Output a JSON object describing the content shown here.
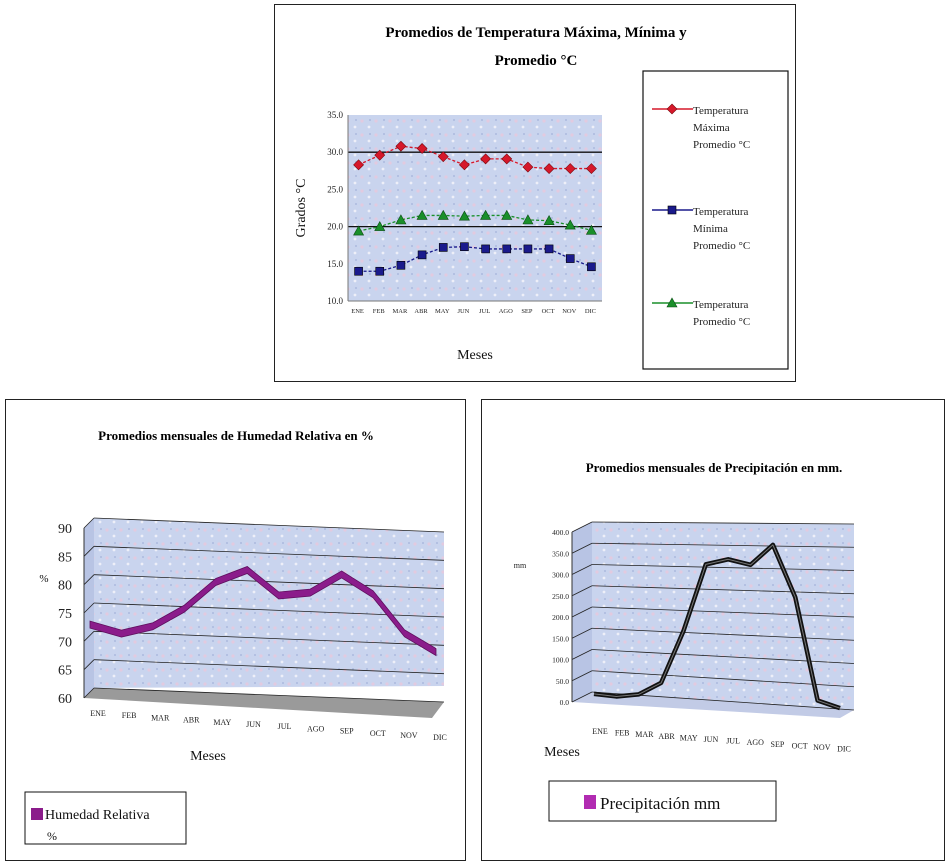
{
  "colors": {
    "tmax": "#d6182a",
    "tmin": "#1a1a8c",
    "tprom": "#1a8f2a",
    "humedad": "#8b1c8b",
    "precip": "#111111",
    "plot_bg": "#c9d4ee"
  },
  "chart_data": [
    {
      "type": "line",
      "title_line1": "Promedios de Temperatura Máxima, Mínima y",
      "title_line2": "Promedio °C",
      "xlabel": "Meses",
      "ylabel": "Grados °C",
      "ylim": [
        10,
        35
      ],
      "yticks": [
        "35.0",
        "30.0",
        "25.0",
        "20.0",
        "15.0",
        "10.0"
      ],
      "categories": [
        "ENE",
        "FEB",
        "MAR",
        "ABR",
        "MAY",
        "JUN",
        "JUL",
        "AGO",
        "SEP",
        "OCT",
        "NOV",
        "DIC"
      ],
      "grid": "horizontal",
      "legend_position": "right",
      "series": [
        {
          "name_lines": [
            "Temperatura",
            "Máxima",
            "Promedio °C"
          ],
          "marker": "diamond",
          "values": [
            28.3,
            29.6,
            30.8,
            30.5,
            29.4,
            28.3,
            29.1,
            29.1,
            28.0,
            27.8,
            27.8,
            27.8
          ]
        },
        {
          "name_lines": [
            "Temperatura",
            "Mínima",
            "Promedio °C"
          ],
          "marker": "square",
          "values": [
            14.0,
            14.0,
            14.8,
            16.2,
            17.2,
            17.3,
            17.0,
            17.0,
            17.0,
            17.0,
            15.7,
            14.6
          ]
        },
        {
          "name_lines": [
            "Temperatura",
            "Promedio °C"
          ],
          "marker": "triangle",
          "values": [
            19.4,
            20.0,
            20.9,
            21.5,
            21.5,
            21.4,
            21.5,
            21.5,
            20.9,
            20.8,
            20.2,
            19.5
          ]
        }
      ]
    },
    {
      "type": "line",
      "title": "Promedios mensuales de Humedad Relativa en %",
      "xlabel": "Meses",
      "ylabel": "%",
      "ylim": [
        60,
        90
      ],
      "yticks": [
        "90",
        "85",
        "80",
        "75",
        "70",
        "65",
        "60"
      ],
      "categories": [
        "ENE",
        "FEB",
        "MAR",
        "ABR",
        "MAY",
        "JUN",
        "JUL",
        "AGO",
        "SEP",
        "OCT",
        "NOV",
        "DIC"
      ],
      "legend_position": "bottom-left",
      "series": [
        {
          "name_lines": [
            "Humedad Relativa",
            "%"
          ],
          "values": [
            72.2,
            70.8,
            72.3,
            75.6,
            80.5,
            82.8,
            78.5,
            79.2,
            82.6,
            79.3,
            72.6,
            69.5
          ]
        }
      ]
    },
    {
      "type": "line",
      "title": "Promedios mensuales de Precipitación en mm.",
      "xlabel": "Meses",
      "ylabel": "mm",
      "ylim": [
        0,
        400
      ],
      "yticks": [
        "400.0",
        "350.0",
        "300.0",
        "250.0",
        "200.0",
        "150.0",
        "100.0",
        "50.0",
        "0.0"
      ],
      "categories": [
        "ENE",
        "FEB",
        "MAR",
        "ABR",
        "MAY",
        "JUN",
        "JUL",
        "AGO",
        "SEP",
        "OCT",
        "NOV",
        "DIC"
      ],
      "legend_position": "bottom",
      "series": [
        {
          "name": "Precipitación mm",
          "values": [
            5,
            2,
            10,
            40,
            165,
            325,
            340,
            330,
            380,
            260,
            20,
            5
          ]
        }
      ]
    }
  ]
}
